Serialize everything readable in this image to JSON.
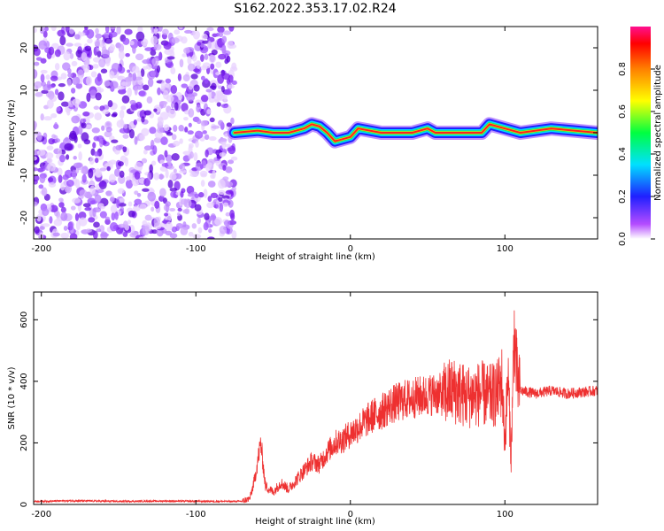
{
  "title": "S162.2022.353.17.02.R24",
  "chart_data": [
    {
      "type": "heatmap",
      "xlabel": "Height of straight line (km)",
      "ylabel": "Frequency (Hz)",
      "xlim": [
        -205,
        160
      ],
      "ylim": [
        -25,
        25
      ],
      "xticks": [
        -200,
        -100,
        0,
        100
      ],
      "yticks": [
        -20,
        -10,
        0,
        10,
        20
      ],
      "colorbar": {
        "label": "Normalized spectral amplitude",
        "range": [
          0,
          1
        ],
        "ticks": [
          0.0,
          0.2,
          0.4,
          0.6,
          0.8
        ]
      },
      "noise_region_x": [
        -205,
        -75
      ],
      "carrier_trace": [
        [
          -75,
          0
        ],
        [
          -60,
          0.5
        ],
        [
          -50,
          0
        ],
        [
          -40,
          0
        ],
        [
          -30,
          1
        ],
        [
          -25,
          2
        ],
        [
          -20,
          1.5
        ],
        [
          -15,
          0
        ],
        [
          -10,
          -2
        ],
        [
          0,
          -1
        ],
        [
          5,
          1
        ],
        [
          20,
          0
        ],
        [
          40,
          0
        ],
        [
          50,
          1
        ],
        [
          55,
          0
        ],
        [
          70,
          0
        ],
        [
          85,
          0
        ],
        [
          90,
          2
        ],
        [
          100,
          1
        ],
        [
          110,
          0
        ],
        [
          130,
          1
        ],
        [
          160,
          0
        ]
      ]
    },
    {
      "type": "line",
      "xlabel": "Height of straight line (km)",
      "ylabel": "SNR (10 * v/v)",
      "xlim": [
        -205,
        160
      ],
      "ylim": [
        0,
        690
      ],
      "xticks": [
        -200,
        -100,
        0,
        100
      ],
      "yticks": [
        0,
        200,
        400,
        600
      ],
      "series": [
        {
          "x": [
            -205,
            -180,
            -150,
            -120,
            -90,
            -70,
            -65,
            -62,
            -58,
            -55,
            -50,
            -45,
            -40,
            -35,
            -30,
            -25,
            -20,
            -15,
            -10,
            -5,
            0,
            5,
            10,
            15,
            20,
            25,
            30,
            35,
            40,
            45,
            50,
            55,
            60,
            65,
            70,
            75,
            80,
            85,
            90,
            95,
            98,
            100,
            102,
            104,
            106,
            108,
            110,
            115,
            120,
            130,
            140,
            150,
            160
          ],
          "y": [
            10,
            12,
            10,
            11,
            10,
            10,
            20,
            80,
            200,
            60,
            40,
            70,
            50,
            80,
            110,
            140,
            130,
            170,
            200,
            210,
            230,
            250,
            270,
            290,
            300,
            320,
            330,
            340,
            345,
            350,
            355,
            360,
            355,
            370,
            365,
            350,
            355,
            360,
            350,
            360,
            400,
            200,
            420,
            150,
            560,
            400,
            370,
            365,
            360,
            370,
            360,
            365,
            370
          ],
          "color": "#ee3030"
        }
      ]
    }
  ]
}
